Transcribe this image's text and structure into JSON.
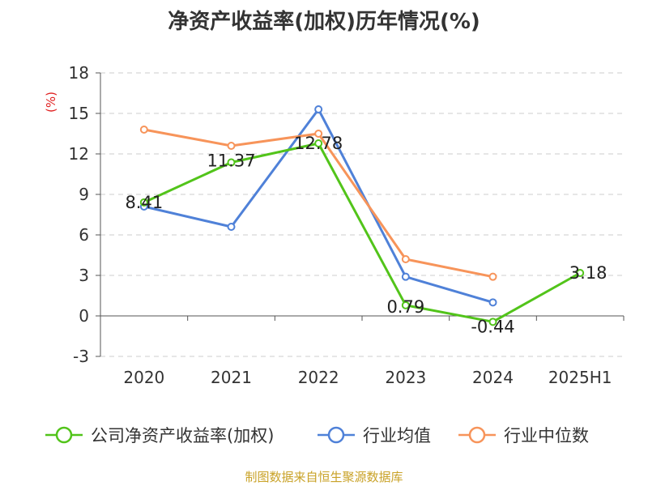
{
  "chart_data": {
    "type": "line",
    "title": "净资产收益率(加权)历年情况(%)",
    "ylabel": "(%)",
    "xlabel": "",
    "categories": [
      "2020",
      "2021",
      "2022",
      "2023",
      "2024",
      "2025H1"
    ],
    "ylim": [
      -3,
      18
    ],
    "yticks": [
      -3,
      0,
      3,
      6,
      9,
      12,
      15,
      18
    ],
    "grid": true,
    "legend_position": "bottom",
    "series": [
      {
        "name": "公司净资产收益率(加权)",
        "color": "#52c41a",
        "values": [
          8.41,
          11.37,
          12.78,
          0.79,
          -0.44,
          3.18
        ],
        "labels": [
          "8.41",
          "11.37",
          "12.78",
          "0.79",
          "-0.44",
          "3.18"
        ]
      },
      {
        "name": "行业均值",
        "color": "#4f81d8",
        "values": [
          8.1,
          6.6,
          15.3,
          2.9,
          1.0,
          null
        ]
      },
      {
        "name": "行业中位数",
        "color": "#f7945a",
        "values": [
          13.8,
          12.6,
          13.5,
          4.2,
          2.9,
          null
        ]
      }
    ]
  },
  "source_text": "制图数据来自恒生聚源数据库"
}
